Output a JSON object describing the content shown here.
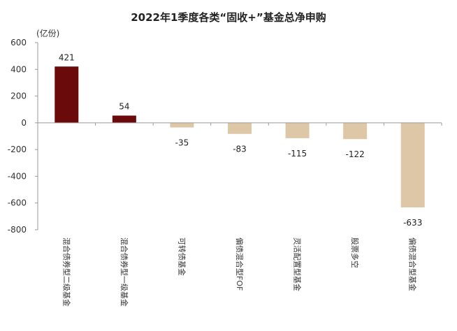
{
  "chart_data": {
    "type": "bar",
    "title": "2022年1季度各类“固收+”基金总净申购",
    "ylabel": "(亿份)",
    "xlabel": "",
    "ylim": [
      -800,
      600
    ],
    "yticks": [
      600,
      400,
      200,
      0,
      -200,
      -400,
      -600,
      -800
    ],
    "categories": [
      "混合债券型二级基金",
      "混合债券型一级基金",
      "可转债基金",
      "偏债混合型FOF",
      "灵活配置型基金",
      "股票多空",
      "偏债混合型基金"
    ],
    "values": [
      421,
      54,
      -35,
      -83,
      -115,
      -122,
      -633
    ],
    "grid": false,
    "colors": {
      "positive": "#6b0a0a",
      "negative": "#ddc7a6"
    }
  }
}
